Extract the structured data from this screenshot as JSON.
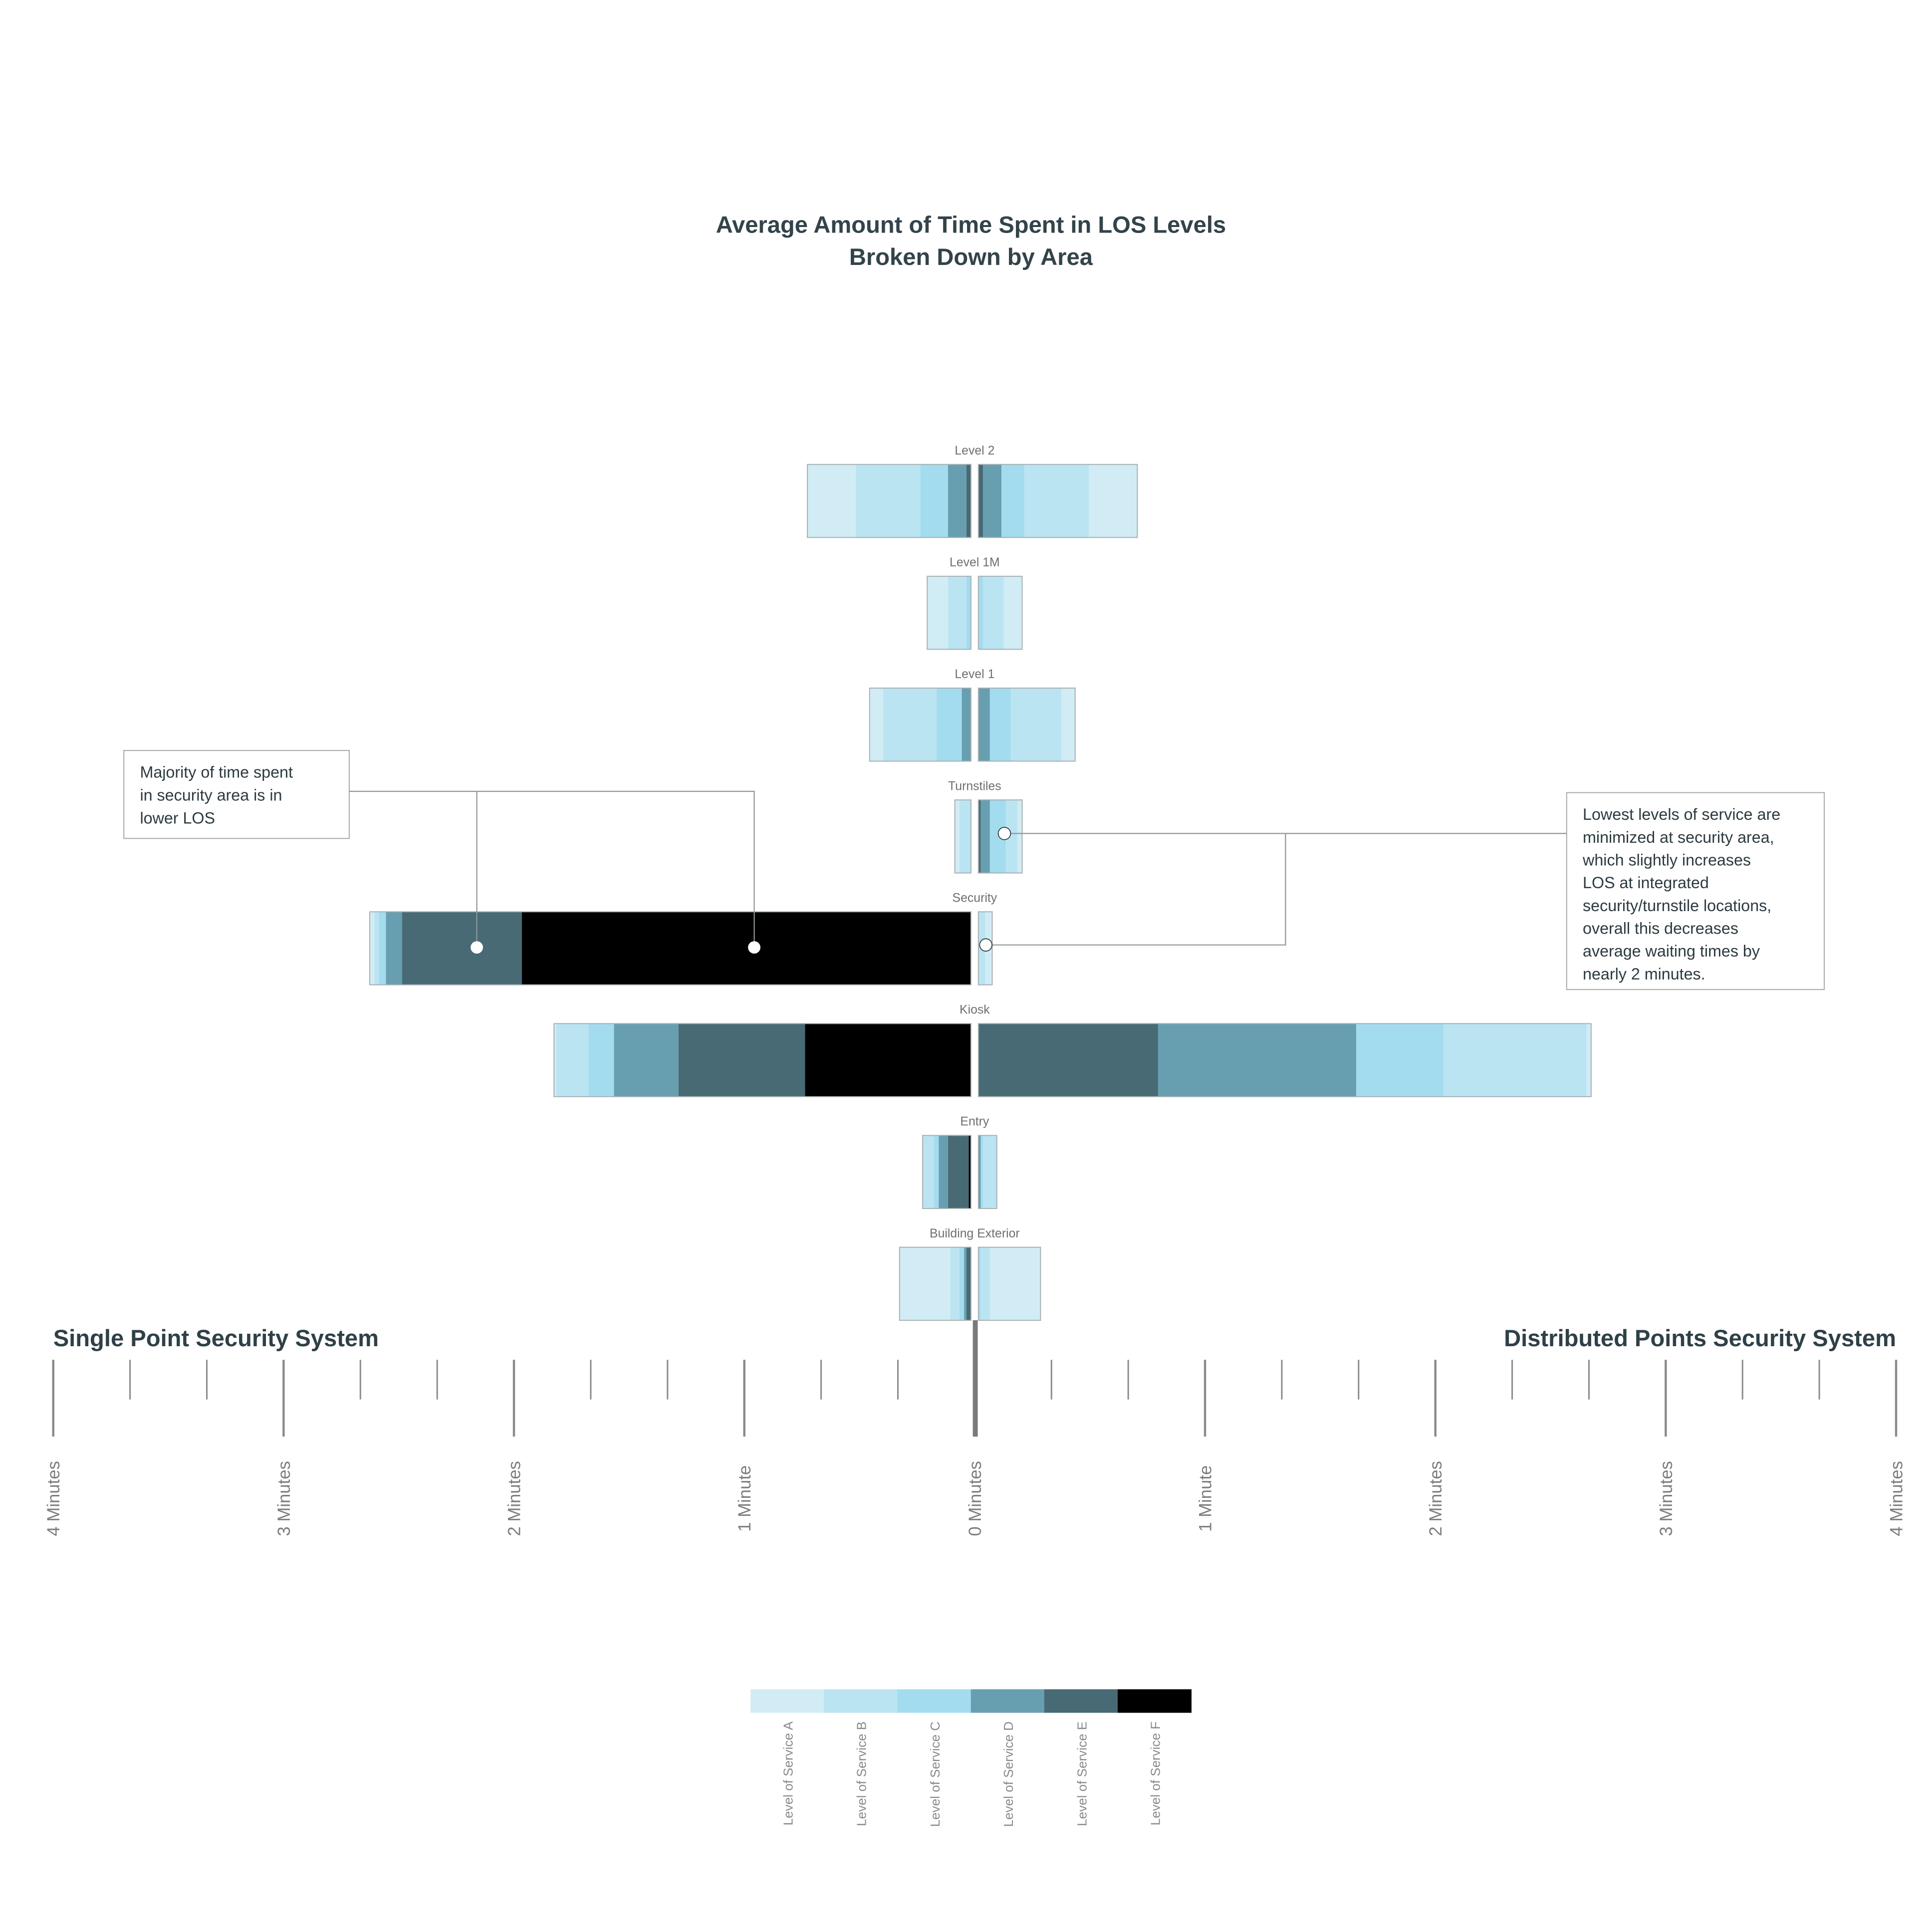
{
  "chart_data": {
    "type": "bar",
    "title": [
      "Average Amount of Time Spent in LOS Levels",
      "Broken Down by Area"
    ],
    "left_label": "Single Point Security System",
    "right_label": "Distributed Points Security System",
    "xunit": "minutes",
    "xlim": [
      -4,
      4
    ],
    "tick_labels_left": [
      "4 Minutes",
      "3 Minutes",
      "2 Minutes",
      "1 Minute"
    ],
    "tick_label_center": "0 Minutes",
    "tick_labels_right": [
      "1 Minute",
      "2 Minutes",
      "3 Minutes",
      "4 Minutes"
    ],
    "levels": [
      "A",
      "B",
      "C",
      "D",
      "E",
      "F"
    ],
    "colors": {
      "A": "#d1ecf4",
      "B": "#bbe4f2",
      "C": "#a3dcee",
      "D": "#679fb0",
      "E": "#476a75",
      "F": "#000000"
    },
    "legend": [
      "Level of Service A",
      "Level of Service B",
      "Level of Service C",
      "Level of Service D",
      "Level of Service E",
      "Level of Service F"
    ],
    "categories": [
      "Level 2",
      "Level 1M",
      "Level 1",
      "Turnstiles",
      "Security",
      "Kiosk",
      "Entry",
      "Building Exterior"
    ],
    "series": [
      {
        "name": "Level 2",
        "left": {
          "F": 0,
          "E": 0.02,
          "D": 0.08,
          "C": 0.12,
          "B": 0.28,
          "A": 0.21
        },
        "right": {
          "F": 0,
          "E": 0.02,
          "D": 0.08,
          "C": 0.1,
          "B": 0.28,
          "A": 0.21
        }
      },
      {
        "name": "Level 1M",
        "left": {
          "F": 0,
          "E": 0,
          "D": 0,
          "C": 0.02,
          "B": 0.08,
          "A": 0.09
        },
        "right": {
          "F": 0,
          "E": 0,
          "D": 0,
          "C": 0.02,
          "B": 0.09,
          "A": 0.08
        }
      },
      {
        "name": "Level 1",
        "left": {
          "F": 0,
          "E": 0,
          "D": 0.04,
          "C": 0.11,
          "B": 0.23,
          "A": 0.06
        },
        "right": {
          "F": 0,
          "E": 0,
          "D": 0.05,
          "C": 0.09,
          "B": 0.22,
          "A": 0.06
        }
      },
      {
        "name": "Turnstiles",
        "left": {
          "F": 0,
          "E": 0,
          "D": 0,
          "C": 0,
          "B": 0.05,
          "A": 0.02
        },
        "right": {
          "F": 0,
          "E": 0.01,
          "D": 0.04,
          "C": 0.07,
          "B": 0.05,
          "A": 0.02
        }
      },
      {
        "name": "Security",
        "left": {
          "F": 1.95,
          "E": 0.52,
          "D": 0.07,
          "C": 0.03,
          "B": 0.02,
          "A": 0.02
        },
        "right": {
          "F": 0,
          "E": 0,
          "D": 0,
          "C": 0,
          "B": 0.03,
          "A": 0.03
        }
      },
      {
        "name": "Kiosk",
        "left": {
          "F": 0.72,
          "E": 0.55,
          "D": 0.28,
          "C": 0.11,
          "B": 0.14,
          "A": 0.01
        },
        "right": {
          "F": 0,
          "E": 0.78,
          "D": 0.86,
          "C": 0.38,
          "B": 0.62,
          "A": 0.02
        }
      },
      {
        "name": "Entry",
        "left": {
          "F": 0.01,
          "E": 0.09,
          "D": 0.04,
          "C": 0.02,
          "B": 0.05,
          "A": 0
        },
        "right": {
          "F": 0,
          "E": 0,
          "D": 0.01,
          "C": 0.01,
          "B": 0.06,
          "A": 0
        }
      },
      {
        "name": "Building Exterior",
        "left": {
          "F": 0,
          "E": 0.02,
          "D": 0.01,
          "C": 0.02,
          "B": 0.04,
          "A": 0.22
        },
        "right": {
          "F": 0,
          "E": 0,
          "D": 0,
          "C": 0.01,
          "B": 0.04,
          "A": 0.22
        }
      }
    ],
    "annotations": [
      {
        "side": "left",
        "lines": [
          "Majority of time spent",
          "in security area is in",
          "lower LOS"
        ]
      },
      {
        "side": "right",
        "lines": [
          "Lowest levels of service are",
          "minimized at security area,",
          "which slightly increases",
          "LOS at integrated",
          "security/turnstile locations,",
          "overall this decreases",
          "average waiting times by",
          "nearly 2 minutes."
        ]
      }
    ]
  }
}
